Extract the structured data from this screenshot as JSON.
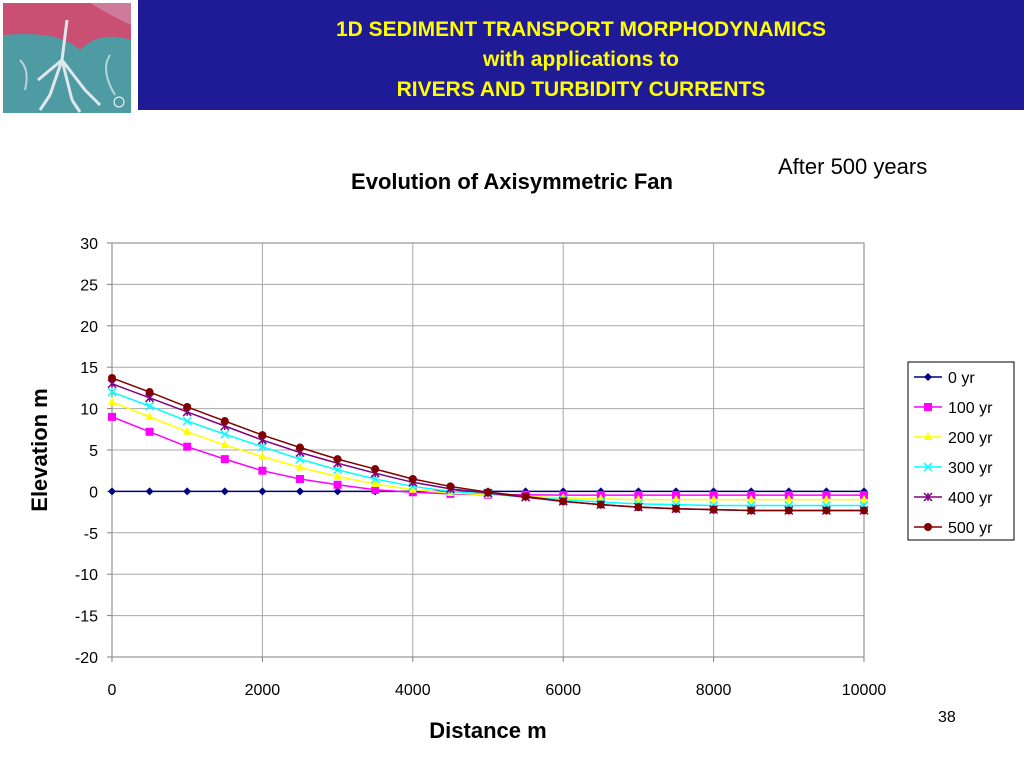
{
  "header": {
    "line1": "1D SEDIMENT TRANSPORT MORPHODYNAMICS",
    "line2": "with applications to",
    "line3": "RIVERS AND TURBIDITY CURRENTS"
  },
  "logo": {
    "icon": "river-delta-satellite-image"
  },
  "note": "After 500 years",
  "slide_number": "38",
  "colors": {
    "banner_bg": "#1f1a95",
    "banner_text": "#ffff00"
  },
  "chart_data": {
    "type": "line",
    "title": "Evolution of Axisymmetric Fan",
    "xlabel": "Distance m",
    "ylabel": "Elevation m",
    "xlim": [
      0,
      10000
    ],
    "ylim": [
      -20,
      30
    ],
    "xticks": [
      0,
      2000,
      4000,
      6000,
      8000,
      10000
    ],
    "yticks": [
      30,
      25,
      20,
      15,
      10,
      5,
      0,
      -5,
      -10,
      -15,
      -20
    ],
    "grid": true,
    "legend": "right",
    "x": [
      0,
      500,
      1000,
      1500,
      2000,
      2500,
      3000,
      3500,
      4000,
      4500,
      5000,
      5500,
      6000,
      6500,
      7000,
      7500,
      8000,
      8500,
      9000,
      9500,
      10000
    ],
    "series": [
      {
        "name": "0 yr",
        "color": "#000080",
        "marker": "diamond",
        "values": [
          0,
          0,
          0,
          0,
          0,
          0,
          0,
          0,
          0,
          0,
          0,
          0,
          0,
          0,
          0,
          0,
          0,
          0,
          0,
          0,
          0
        ]
      },
      {
        "name": "100 yr",
        "color": "#ff00ff",
        "marker": "square",
        "values": [
          9.0,
          7.2,
          5.4,
          3.9,
          2.5,
          1.5,
          0.8,
          0.2,
          -0.1,
          -0.3,
          -0.4,
          -0.4,
          -0.45,
          -0.45,
          -0.45,
          -0.45,
          -0.45,
          -0.45,
          -0.45,
          -0.45,
          -0.45
        ]
      },
      {
        "name": "200 yr",
        "color": "#ffff00",
        "marker": "triangle",
        "values": [
          10.8,
          9.0,
          7.2,
          5.6,
          4.2,
          2.9,
          1.8,
          0.9,
          0.2,
          -0.2,
          -0.4,
          -0.6,
          -0.8,
          -0.9,
          -1.0,
          -1.0,
          -1.0,
          -1.0,
          -1.0,
          -1.0,
          -1.0
        ]
      },
      {
        "name": "300 yr",
        "color": "#00ffff",
        "marker": "x",
        "values": [
          12.0,
          10.3,
          8.5,
          6.9,
          5.4,
          3.9,
          2.6,
          1.5,
          0.6,
          0.0,
          -0.3,
          -0.7,
          -1.0,
          -1.3,
          -1.5,
          -1.6,
          -1.7,
          -1.7,
          -1.7,
          -1.7,
          -1.7
        ]
      },
      {
        "name": "400 yr",
        "color": "#800080",
        "marker": "star",
        "values": [
          13.0,
          11.3,
          9.6,
          7.9,
          6.2,
          4.7,
          3.4,
          2.2,
          1.1,
          0.3,
          -0.2,
          -0.7,
          -1.2,
          -1.6,
          -1.9,
          -2.1,
          -2.2,
          -2.3,
          -2.3,
          -2.3,
          -2.3
        ]
      },
      {
        "name": "500 yr",
        "color": "#800000",
        "marker": "circle",
        "values": [
          13.7,
          12.0,
          10.2,
          8.5,
          6.8,
          5.3,
          3.9,
          2.7,
          1.5,
          0.6,
          -0.1,
          -0.6,
          -1.2,
          -1.6,
          -1.9,
          -2.1,
          -2.2,
          -2.3,
          -2.3,
          -2.3,
          -2.3
        ]
      }
    ]
  }
}
